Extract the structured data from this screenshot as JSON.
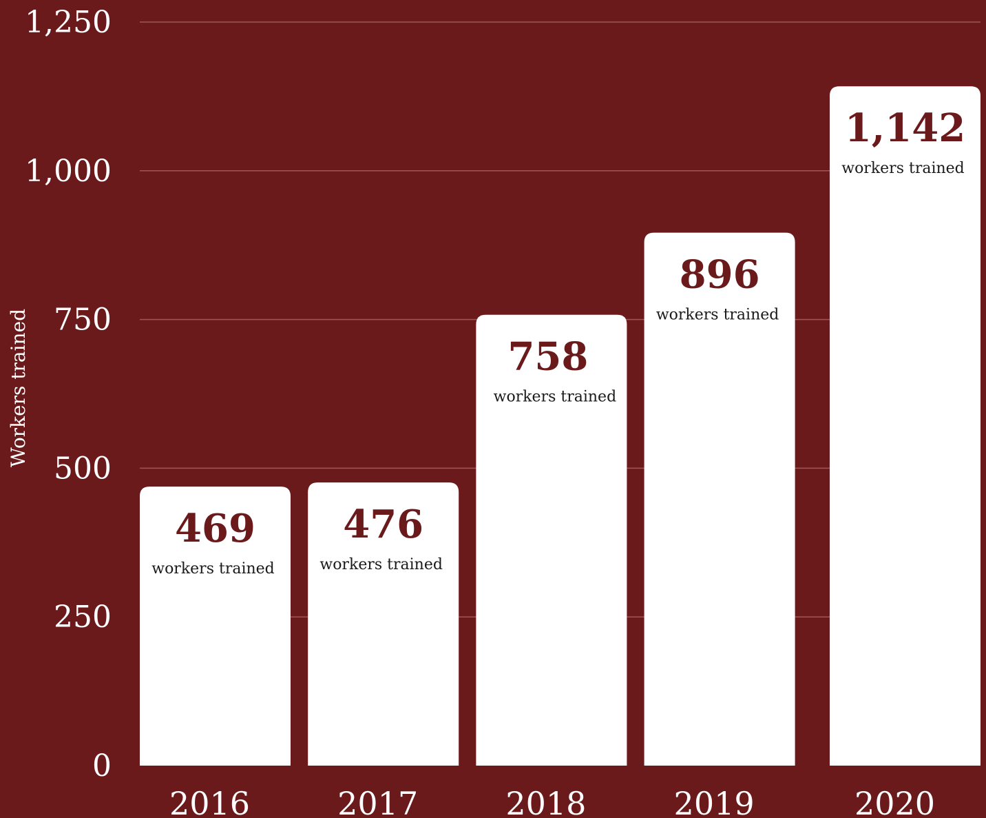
{
  "colors": {
    "background": "#6b1a1c",
    "bar": "#ffffff",
    "value_text": "#6b1a1c",
    "unit_text": "#1a1a1a",
    "axis_text": "#ffffff",
    "grid": "#c98a8a"
  },
  "chart_data": {
    "type": "bar",
    "categories": [
      "2016",
      "2017",
      "2018",
      "2019",
      "2020"
    ],
    "values": [
      469,
      476,
      758,
      896,
      1142
    ],
    "value_labels": [
      "469",
      "476",
      "758",
      "896",
      "1,142"
    ],
    "unit_label": "workers trained",
    "title": "",
    "xlabel": "",
    "ylabel": "Workers trained",
    "ylim": [
      0,
      1250
    ],
    "yticks": [
      0,
      250,
      500,
      750,
      1000,
      1250
    ],
    "ytick_labels": [
      "0",
      "250",
      "500",
      "750",
      "1,000",
      "1,250"
    ],
    "grid": true,
    "legend": "none"
  }
}
